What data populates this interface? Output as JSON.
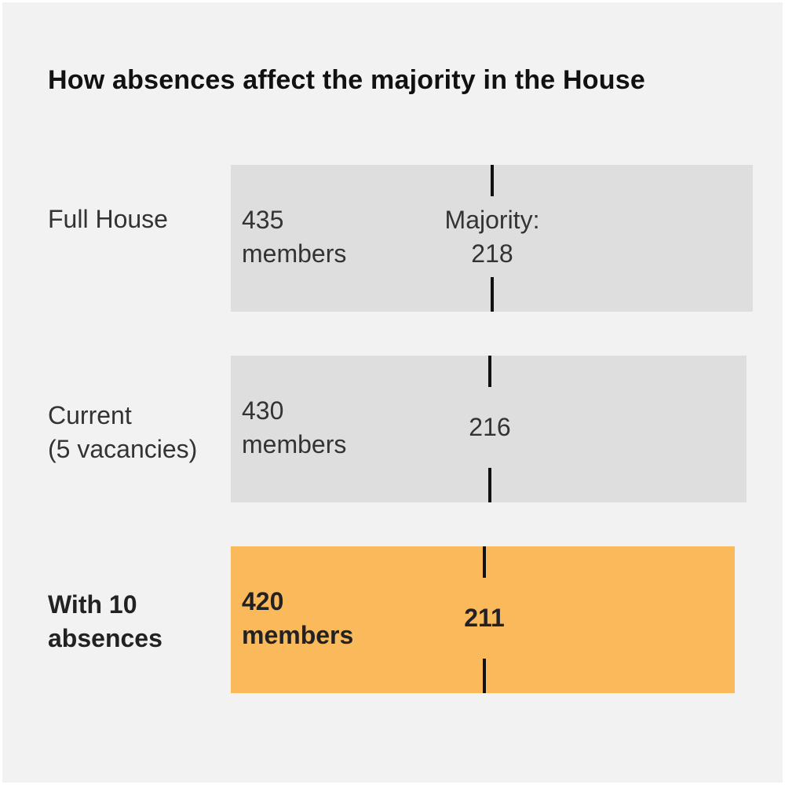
{
  "chart_data": {
    "type": "bar",
    "title": "How absences affect the majority in the House",
    "categories": [
      "Full House",
      "Current\n(5 vacancies)",
      "With 10\nabsences"
    ],
    "values": [
      435,
      430,
      420
    ],
    "member_labels": [
      "435\nmembers",
      "430\nmembers",
      "420\nmembers"
    ],
    "majority_values": [
      218,
      216,
      211
    ],
    "majority_labels": [
      "Majority:\n218",
      "216",
      "211"
    ],
    "highlight_index": 2,
    "xlim": [
      0,
      435
    ],
    "colors": {
      "bar": "#dedede",
      "highlight": "#fab95b",
      "marker": "#111111"
    }
  }
}
